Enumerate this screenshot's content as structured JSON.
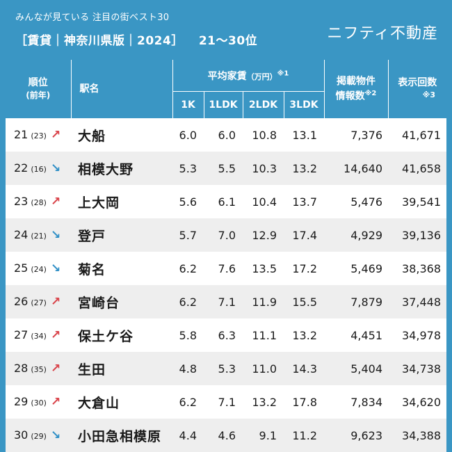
{
  "header": {
    "subtitle": "みんなが見ている 注目の街ベスト30",
    "title": "［賃貸｜神奈川県版｜2024］",
    "range": "21〜30位",
    "brand": "ニフティ不動産"
  },
  "table": {
    "columns": {
      "rank": "順位",
      "rank_prev": "(前年)",
      "station": "駅名",
      "rent": "平均家賃",
      "rent_unit": "（万円）",
      "rent_note": "※1",
      "rent_1k": "1K",
      "rent_1ldk": "1LDK",
      "rent_2ldk": "2LDK",
      "rent_3ldk": "3LDK",
      "listings_line1": "掲載物件",
      "listings_line2": "情報数",
      "listings_note": "※2",
      "views": "表示回数",
      "views_note": "※3"
    },
    "rows": [
      {
        "rank": "21",
        "prev": "(23)",
        "trend": "up",
        "arrow": "↗",
        "station": "大船",
        "k1": "6.0",
        "ldk1": "6.0",
        "ldk2": "10.8",
        "ldk3": "13.1",
        "listings": "7,376",
        "views": "41,671"
      },
      {
        "rank": "22",
        "prev": "(16)",
        "trend": "down",
        "arrow": "↘",
        "station": "相模大野",
        "k1": "5.3",
        "ldk1": "5.5",
        "ldk2": "10.3",
        "ldk3": "13.2",
        "listings": "14,640",
        "views": "41,658"
      },
      {
        "rank": "23",
        "prev": "(28)",
        "trend": "up",
        "arrow": "↗",
        "station": "上大岡",
        "k1": "5.6",
        "ldk1": "6.1",
        "ldk2": "10.4",
        "ldk3": "13.7",
        "listings": "5,476",
        "views": "39,541"
      },
      {
        "rank": "24",
        "prev": "(21)",
        "trend": "down",
        "arrow": "↘",
        "station": "登戸",
        "k1": "5.7",
        "ldk1": "7.0",
        "ldk2": "12.9",
        "ldk3": "17.4",
        "listings": "4,929",
        "views": "39,136"
      },
      {
        "rank": "25",
        "prev": "(24)",
        "trend": "down",
        "arrow": "↘",
        "station": "菊名",
        "k1": "6.2",
        "ldk1": "7.6",
        "ldk2": "13.5",
        "ldk3": "17.2",
        "listings": "5,469",
        "views": "38,368"
      },
      {
        "rank": "26",
        "prev": "(27)",
        "trend": "up",
        "arrow": "↗",
        "station": "宮崎台",
        "k1": "6.2",
        "ldk1": "7.1",
        "ldk2": "11.9",
        "ldk3": "15.5",
        "listings": "7,879",
        "views": "37,448"
      },
      {
        "rank": "27",
        "prev": "(34)",
        "trend": "up",
        "arrow": "↗",
        "station": "保土ケ谷",
        "k1": "5.8",
        "ldk1": "6.3",
        "ldk2": "11.1",
        "ldk3": "13.2",
        "listings": "4,451",
        "views": "34,978"
      },
      {
        "rank": "28",
        "prev": "(35)",
        "trend": "up",
        "arrow": "↗",
        "station": "生田",
        "k1": "4.8",
        "ldk1": "5.3",
        "ldk2": "11.0",
        "ldk3": "14.3",
        "listings": "5,404",
        "views": "34,738"
      },
      {
        "rank": "29",
        "prev": "(30)",
        "trend": "up",
        "arrow": "↗",
        "station": "大倉山",
        "k1": "6.2",
        "ldk1": "7.1",
        "ldk2": "13.2",
        "ldk3": "17.8",
        "listings": "7,834",
        "views": "34,620"
      },
      {
        "rank": "30",
        "prev": "(29)",
        "trend": "down",
        "arrow": "↘",
        "station": "小田急相模原",
        "k1": "4.4",
        "ldk1": "4.6",
        "ldk2": "9.1",
        "ldk3": "11.2",
        "listings": "9,623",
        "views": "34,388"
      }
    ]
  },
  "colors": {
    "header_bg": "#3a96c4",
    "up": "#d9434a",
    "down": "#2f8fc6",
    "row_alt": "#eeeeee"
  }
}
